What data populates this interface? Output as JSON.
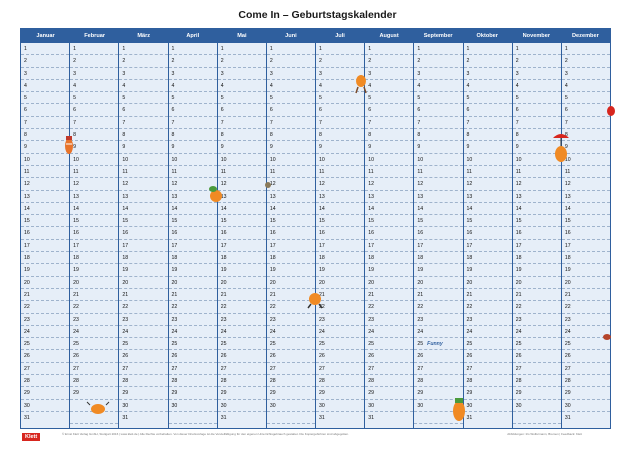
{
  "title": "Come In – Geburtstagskalender",
  "months": [
    {
      "name": "Januar",
      "days": 31
    },
    {
      "name": "Februar",
      "days": 29
    },
    {
      "name": "März",
      "days": 31
    },
    {
      "name": "April",
      "days": 30
    },
    {
      "name": "Mai",
      "days": 31
    },
    {
      "name": "Juni",
      "days": 30
    },
    {
      "name": "Juli",
      "days": 31
    },
    {
      "name": "August",
      "days": 31
    },
    {
      "name": "September",
      "days": 30
    },
    {
      "name": "Oktober",
      "days": 31
    },
    {
      "name": "November",
      "days": 30
    },
    {
      "name": "Dezember",
      "days": 31
    }
  ],
  "notes": [
    {
      "month": "September",
      "day": 25,
      "text": "Funny"
    }
  ],
  "footer_left": "© Ernst Klett Verlag GmbH, Stuttgart 2016 | www.klett.de | Alle Rechte vorbehalten. Von dieser Druckvorlage ist die Vervielfältigung für den eigenen Unterrichtsgebrauch gestattet. Die Kopiergebühren sind abgegolten.",
  "footer_right": "Abbildungen: Iris Wolfermann, Bremen | Feedback: Klett",
  "logo_text": "Klett",
  "colors": {
    "primary": "#2f5f9e",
    "grid_bg": "#e6eef8",
    "logo": "#d7261e"
  }
}
